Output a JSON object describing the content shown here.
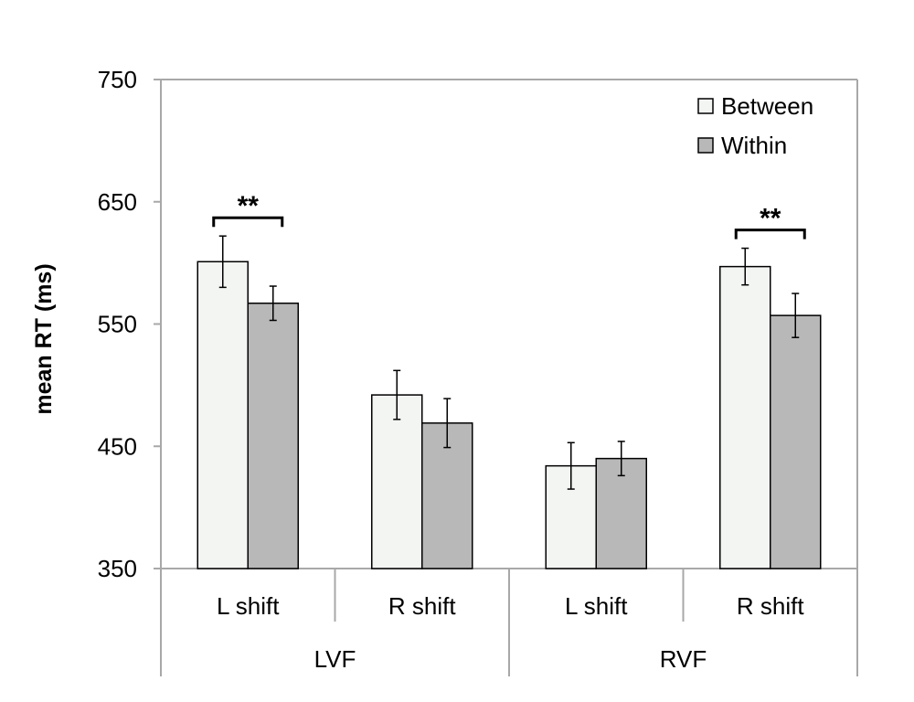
{
  "chart_data": {
    "type": "bar",
    "title": "",
    "ylabel": "mean RT (ms)",
    "xlabel": "",
    "ylim": [
      350,
      750
    ],
    "yticks": [
      "350",
      "450",
      "550",
      "650",
      "750"
    ],
    "groups": [
      {
        "label": "LVF",
        "categories": [
          "L shift",
          "R shift"
        ]
      },
      {
        "label": "RVF",
        "categories": [
          "L shift",
          "R shift"
        ]
      }
    ],
    "categories": [
      "L shift",
      "R shift",
      "L shift",
      "R shift"
    ],
    "series": [
      {
        "name": "Between",
        "color": "#f3f5f3",
        "values": [
          601,
          492,
          434,
          597
        ],
        "errors": [
          21,
          20,
          19,
          15
        ]
      },
      {
        "name": "Within",
        "color": "#b8b8b8",
        "values": [
          567,
          469,
          440,
          557
        ],
        "errors": [
          14,
          20,
          14,
          18
        ]
      }
    ],
    "significance": [
      {
        "category_index": 0,
        "label": "**"
      },
      {
        "category_index": 3,
        "label": "**"
      }
    ],
    "legend_position": "top-right",
    "grid": false
  }
}
